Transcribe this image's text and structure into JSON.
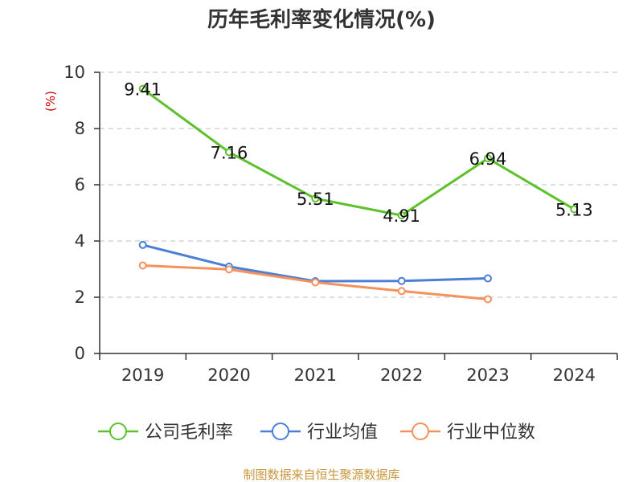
{
  "chart_data": {
    "type": "line",
    "title": "历年毛利率变化情况(%)",
    "ylabel": "(%)",
    "xlabel": "",
    "categories": [
      "2019",
      "2020",
      "2021",
      "2022",
      "2023",
      "2024"
    ],
    "ylim": [
      0,
      10
    ],
    "yticks": [
      "0",
      "2",
      "4",
      "6",
      "8",
      "10"
    ],
    "grid": true,
    "legend_position": "bottom",
    "series": [
      {
        "name": "公司毛利率",
        "color": "#5cc12a",
        "values": [
          9.41,
          7.16,
          5.51,
          4.91,
          6.94,
          5.13
        ],
        "labels": [
          "9.41",
          "7.16",
          "5.51",
          "4.91",
          "6.94",
          "5.13"
        ]
      },
      {
        "name": "行业均值",
        "color": "#4b7fd6",
        "values": [
          3.86,
          3.09,
          2.57,
          2.58,
          2.67,
          null
        ]
      },
      {
        "name": "行业中位数",
        "color": "#f5915c",
        "values": [
          3.13,
          2.99,
          2.53,
          2.22,
          1.93,
          null
        ]
      }
    ]
  },
  "colors": {
    "unit_label": "#cc0000",
    "source": "#c8963c",
    "axis": "#333333",
    "grid": "#cccccc"
  },
  "source_text": "制图数据来自恒生聚源数据库"
}
